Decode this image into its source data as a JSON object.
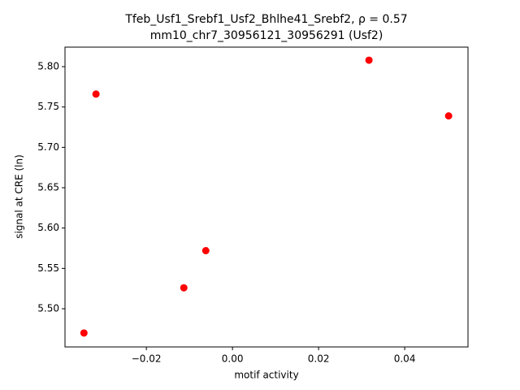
{
  "chart_data": {
    "type": "scatter",
    "title": [
      "Tfeb_Usf1_Srebf1_Usf2_Bhlhe41_Srebf2, ρ = 0.57",
      "mm10_chr7_30956121_30956291 (Usf2)"
    ],
    "xlabel": "motif activity",
    "ylabel": "signal at CRE (ln)",
    "color": "#ff0000",
    "x": [
      -0.0317,
      0.0317,
      0.0502,
      -0.0062,
      -0.0113,
      -0.0345
    ],
    "values": [
      5.766,
      5.808,
      5.739,
      5.572,
      5.526,
      5.47
    ],
    "xlim": [
      -0.0389,
      0.0547
    ],
    "ylim": [
      5.4527,
      5.8242
    ],
    "xticks": [
      {
        "value": -0.02,
        "label": "−0.02"
      },
      {
        "value": 0,
        "label": "0.00"
      },
      0.02,
      0.04
    ],
    "yticks": [
      {
        "value": 5.5,
        "label": "5.50"
      },
      5.55,
      {
        "value": 5.6,
        "label": "5.60"
      },
      5.65,
      {
        "value": 5.7,
        "label": "5.70"
      },
      5.75,
      {
        "value": 5.8,
        "label": "5.80"
      }
    ]
  }
}
